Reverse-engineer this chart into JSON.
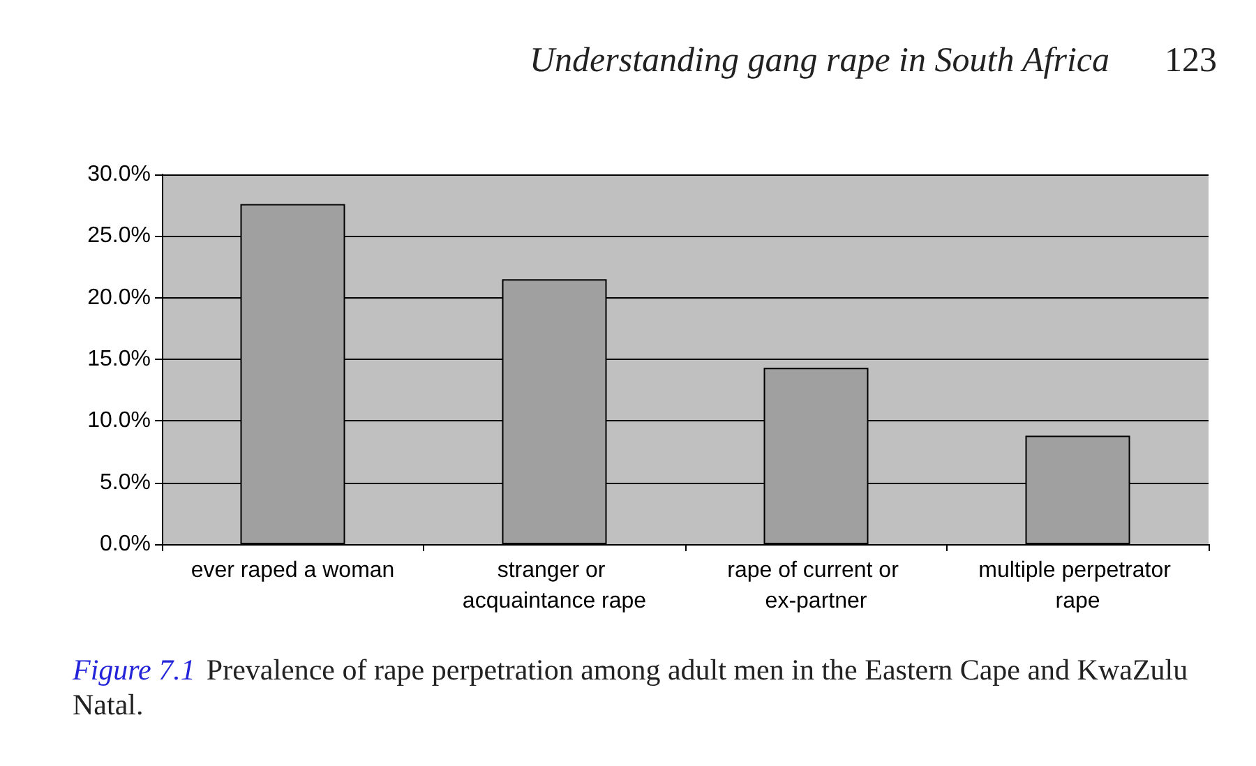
{
  "chart_data": {
    "type": "bar",
    "title": "Prevalence of rape perpetration among adult men in the Eastern Cape and KwaZulu Natal.",
    "annotations": [
      "Understanding gang rape in South Africa",
      "123",
      "Figure 7.1"
    ],
    "categories": [
      "ever raped a woman",
      "stranger or acquaintance rape",
      "rape of current or ex-partner",
      "multiple perpetrator rape"
    ],
    "values": [
      27.6,
      21.5,
      14.3,
      8.8
    ],
    "color": "#a0a0a0",
    "ylim": [
      0,
      30
    ],
    "yticks": [
      {
        "value": 0,
        "label": "0.0%"
      },
      {
        "value": 5,
        "label": "5.0%"
      },
      {
        "value": 10,
        "label": "10.0%"
      },
      {
        "value": 15,
        "label": "15.0%"
      },
      {
        "value": 20,
        "label": "20.0%"
      },
      {
        "value": 25,
        "label": "25.0%"
      },
      {
        "value": 30,
        "label": "30.0%"
      }
    ],
    "grid": "y"
  }
}
